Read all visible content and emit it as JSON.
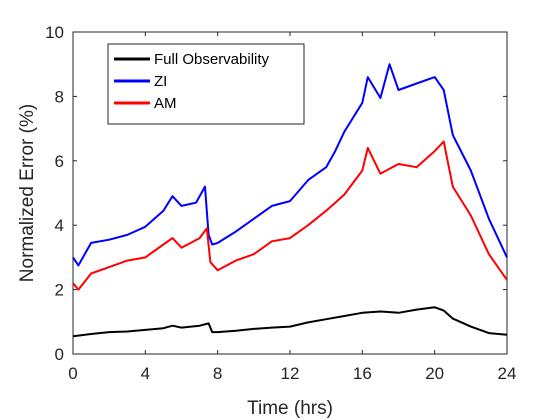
{
  "chart_data": {
    "type": "line",
    "xlabel": "Time (hrs)",
    "ylabel": "Normalized Error (%)",
    "xlim": [
      0,
      24
    ],
    "ylim": [
      0,
      10
    ],
    "xticks": [
      0,
      4,
      8,
      12,
      16,
      20,
      24
    ],
    "yticks": [
      0,
      2,
      4,
      6,
      8,
      10
    ],
    "grid": false,
    "legend_position": "top-left",
    "series": [
      {
        "name": "Full Observability",
        "color": "#000000",
        "x": [
          0,
          1,
          2,
          3,
          4,
          5,
          5.5,
          6,
          7,
          7.5,
          7.7,
          8,
          9,
          10,
          11,
          12,
          13,
          14,
          15,
          16,
          17,
          18,
          19,
          20,
          20.5,
          21,
          22,
          23,
          24
        ],
        "y": [
          0.55,
          0.62,
          0.68,
          0.7,
          0.75,
          0.8,
          0.88,
          0.82,
          0.88,
          0.95,
          0.68,
          0.68,
          0.72,
          0.78,
          0.82,
          0.85,
          0.98,
          1.08,
          1.18,
          1.28,
          1.32,
          1.28,
          1.38,
          1.45,
          1.35,
          1.1,
          0.85,
          0.65,
          0.6
        ]
      },
      {
        "name": "ZI",
        "color": "#0000ff",
        "x": [
          0,
          0.3,
          1,
          2,
          3,
          4,
          5,
          5.5,
          6,
          6.8,
          7.3,
          7.5,
          7.7,
          8,
          9,
          10,
          11,
          12,
          13,
          14,
          14.5,
          15,
          16,
          16.3,
          17,
          17.5,
          18,
          19,
          20,
          20.5,
          21,
          22,
          23,
          24
        ],
        "y": [
          3.0,
          2.75,
          3.45,
          3.55,
          3.7,
          3.95,
          4.45,
          4.9,
          4.6,
          4.7,
          5.2,
          3.7,
          3.4,
          3.45,
          3.8,
          4.2,
          4.6,
          4.75,
          5.4,
          5.8,
          6.3,
          6.9,
          7.8,
          8.6,
          7.95,
          9.0,
          8.2,
          8.4,
          8.6,
          8.2,
          6.8,
          5.7,
          4.2,
          3.0
        ]
      },
      {
        "name": "AM",
        "color": "#ff0000",
        "x": [
          0,
          0.3,
          1,
          2,
          3,
          4,
          5,
          5.5,
          6,
          7,
          7.4,
          7.6,
          8,
          9,
          10,
          11,
          12,
          13,
          14,
          15,
          16,
          16.3,
          17,
          18,
          19,
          20,
          20.5,
          21,
          22,
          23,
          24
        ],
        "y": [
          2.2,
          2.0,
          2.5,
          2.7,
          2.9,
          3.0,
          3.4,
          3.6,
          3.3,
          3.6,
          3.9,
          2.85,
          2.6,
          2.9,
          3.1,
          3.5,
          3.6,
          4.0,
          4.45,
          4.95,
          5.7,
          6.4,
          5.6,
          5.9,
          5.8,
          6.3,
          6.6,
          5.2,
          4.3,
          3.1,
          2.3
        ]
      }
    ]
  }
}
